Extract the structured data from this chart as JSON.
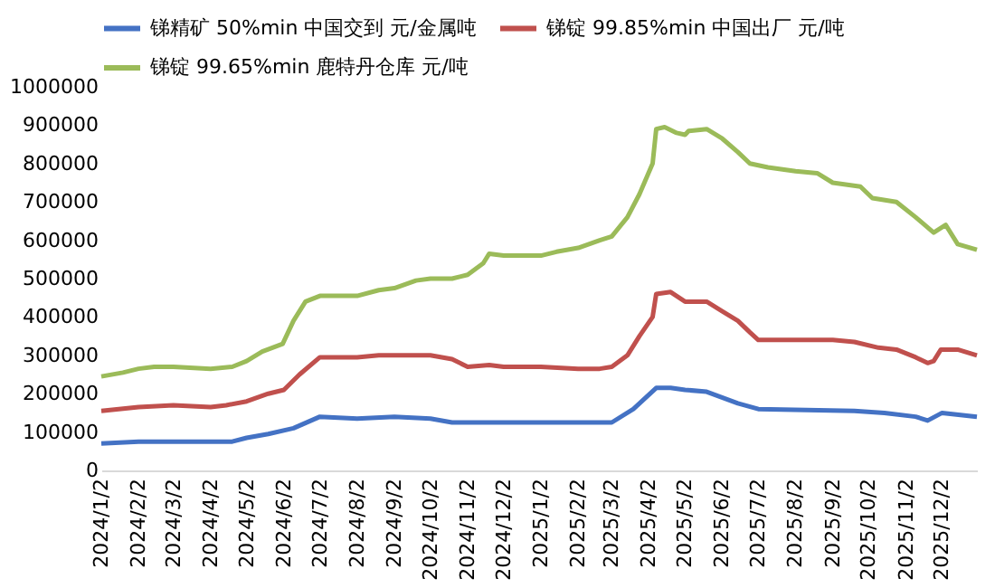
{
  "chart_data": {
    "type": "line",
    "xlim": [
      "2024-01-02",
      "2025-12-31"
    ],
    "xticks": [
      {
        "value": "2024-01-02",
        "label": "2024/1/2"
      },
      {
        "value": "2024-02-02",
        "label": "2024/2/2"
      },
      {
        "value": "2024-03-02",
        "label": "2024/3/2"
      },
      {
        "value": "2024-04-02",
        "label": "2024/4/2"
      },
      {
        "value": "2024-05-02",
        "label": "2024/5/2"
      },
      {
        "value": "2024-06-02",
        "label": "2024/6/2"
      },
      {
        "value": "2024-07-02",
        "label": "2024/7/2"
      },
      {
        "value": "2024-08-02",
        "label": "2024/8/2"
      },
      {
        "value": "2024-09-02",
        "label": "2024/9/2"
      },
      {
        "value": "2024-10-02",
        "label": "2024/10/2"
      },
      {
        "value": "2024-11-02",
        "label": "2024/11/2"
      },
      {
        "value": "2024-12-02",
        "label": "2024/12/2"
      },
      {
        "value": "2025-01-02",
        "label": "2025/1/2"
      },
      {
        "value": "2025-02-02",
        "label": "2025/2/2"
      },
      {
        "value": "2025-03-02",
        "label": "2025/3/2"
      },
      {
        "value": "2025-04-02",
        "label": "2025/4/2"
      },
      {
        "value": "2025-05-02",
        "label": "2025/5/2"
      },
      {
        "value": "2025-06-02",
        "label": "2025/6/2"
      },
      {
        "value": "2025-07-02",
        "label": "2025/7/2"
      },
      {
        "value": "2025-08-02",
        "label": "2025/8/2"
      },
      {
        "value": "2025-09-02",
        "label": "2025/9/2"
      },
      {
        "value": "2025-10-02",
        "label": "2025/10/2"
      },
      {
        "value": "2025-11-02",
        "label": "2025/11/2"
      },
      {
        "value": "2025-12-02",
        "label": "2025/12/2"
      }
    ],
    "ylim": [
      0,
      1000000
    ],
    "yticks": [
      0,
      100000,
      200000,
      300000,
      400000,
      500000,
      600000,
      700000,
      800000,
      900000,
      1000000
    ],
    "grid": false,
    "legend": "top",
    "series": [
      {
        "name": "锑精矿 50%min 中国交到 元/金属吨",
        "color": "#4472c4",
        "x": [
          "2024-01-02",
          "2024-02-02",
          "2024-04-20",
          "2024-05-02",
          "2024-05-20",
          "2024-06-10",
          "2024-07-02",
          "2024-08-02",
          "2024-09-02",
          "2024-10-02",
          "2024-10-20",
          "2025-03-02",
          "2025-03-20",
          "2025-04-08",
          "2025-04-20",
          "2025-05-02",
          "2025-05-20",
          "2025-06-15",
          "2025-07-02",
          "2025-09-20",
          "2025-10-15",
          "2025-11-10",
          "2025-11-20",
          "2025-12-02",
          "2025-12-31"
        ],
        "values": [
          70000,
          75000,
          75000,
          85000,
          95000,
          110000,
          140000,
          135000,
          140000,
          135000,
          125000,
          125000,
          160000,
          215000,
          215000,
          210000,
          205000,
          175000,
          160000,
          155000,
          150000,
          140000,
          130000,
          150000,
          140000
        ]
      },
      {
        "name": "锑锭 99.85%min 中国出厂 元/吨",
        "color": "#c0504d",
        "x": [
          "2024-01-02",
          "2024-02-02",
          "2024-03-02",
          "2024-04-02",
          "2024-04-15",
          "2024-05-02",
          "2024-05-20",
          "2024-06-02",
          "2024-06-15",
          "2024-07-02",
          "2024-08-02",
          "2024-08-20",
          "2024-09-02",
          "2024-10-02",
          "2024-10-20",
          "2024-11-02",
          "2024-11-20",
          "2024-12-02",
          "2025-01-02",
          "2025-02-02",
          "2025-02-20",
          "2025-03-02",
          "2025-03-15",
          "2025-03-25",
          "2025-04-05",
          "2025-04-08",
          "2025-04-20",
          "2025-05-02",
          "2025-05-20",
          "2025-06-02",
          "2025-06-15",
          "2025-06-25",
          "2025-07-02",
          "2025-09-02",
          "2025-09-20",
          "2025-10-10",
          "2025-10-25",
          "2025-11-10",
          "2025-11-20",
          "2025-11-25",
          "2025-12-01",
          "2025-12-15",
          "2025-12-31"
        ],
        "values": [
          155000,
          165000,
          170000,
          165000,
          170000,
          180000,
          200000,
          210000,
          250000,
          295000,
          295000,
          300000,
          300000,
          300000,
          290000,
          270000,
          275000,
          270000,
          270000,
          265000,
          265000,
          270000,
          300000,
          350000,
          400000,
          460000,
          465000,
          440000,
          440000,
          415000,
          390000,
          360000,
          340000,
          340000,
          335000,
          320000,
          315000,
          295000,
          280000,
          285000,
          315000,
          315000,
          300000
        ]
      },
      {
        "name": "锑锭 99.65%min 鹿特丹仓库 元/吨",
        "color": "#9bbb59",
        "x": [
          "2024-01-02",
          "2024-01-20",
          "2024-02-02",
          "2024-02-15",
          "2024-03-02",
          "2024-04-02",
          "2024-04-20",
          "2024-05-02",
          "2024-05-15",
          "2024-06-01",
          "2024-06-10",
          "2024-06-20",
          "2024-07-02",
          "2024-07-20",
          "2024-08-02",
          "2024-08-20",
          "2024-09-02",
          "2024-09-20",
          "2024-10-02",
          "2024-10-20",
          "2024-11-02",
          "2024-11-15",
          "2024-11-20",
          "2024-12-02",
          "2025-01-02",
          "2025-01-15",
          "2025-02-02",
          "2025-02-20",
          "2025-03-02",
          "2025-03-15",
          "2025-03-25",
          "2025-04-05",
          "2025-04-08",
          "2025-04-15",
          "2025-04-25",
          "2025-05-02",
          "2025-05-05",
          "2025-05-20",
          "2025-06-02",
          "2025-06-15",
          "2025-06-25",
          "2025-07-10",
          "2025-08-02",
          "2025-08-20",
          "2025-09-02",
          "2025-09-25",
          "2025-10-05",
          "2025-10-25",
          "2025-11-10",
          "2025-11-25",
          "2025-12-05",
          "2025-12-15",
          "2025-12-31"
        ],
        "values": [
          245000,
          255000,
          265000,
          270000,
          270000,
          265000,
          270000,
          285000,
          310000,
          330000,
          390000,
          440000,
          455000,
          455000,
          455000,
          470000,
          475000,
          495000,
          500000,
          500000,
          510000,
          540000,
          565000,
          560000,
          560000,
          570000,
          580000,
          600000,
          610000,
          660000,
          720000,
          800000,
          890000,
          895000,
          880000,
          875000,
          885000,
          890000,
          865000,
          830000,
          800000,
          790000,
          780000,
          775000,
          750000,
          740000,
          710000,
          700000,
          660000,
          620000,
          640000,
          590000,
          575000
        ]
      }
    ]
  }
}
